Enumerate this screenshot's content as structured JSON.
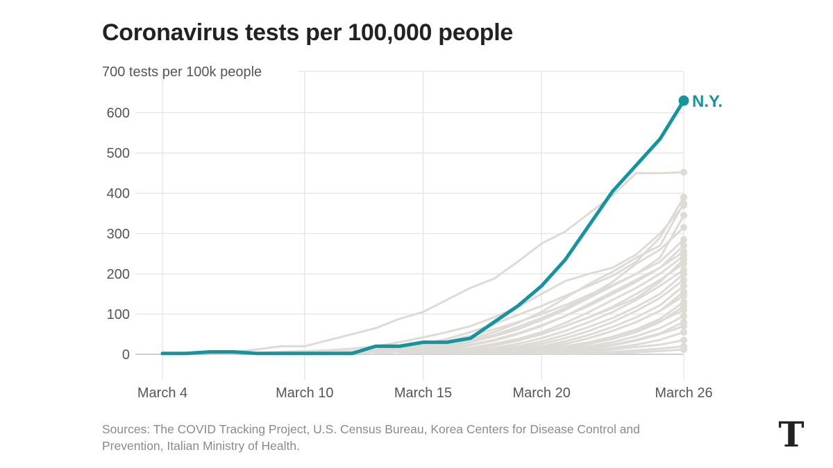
{
  "title": "Coronavirus tests per 100,000 people",
  "source": "Sources: The COVID Tracking Project, U.S. Census Bureau, Korea Centers for Disease Control and Prevention, Italian Ministry of Health.",
  "logo": {
    "icon": "nyt-logo-icon",
    "text": "T"
  },
  "colors": {
    "highlight": "#12959f",
    "background_lines": "#dedad6",
    "grid": "#e2e2e2",
    "axis": "#cfcfcf",
    "text": "#555555"
  },
  "chart_data": {
    "type": "line",
    "title": "Coronavirus tests per 100,000 people",
    "ylabel": "tests per 100k people",
    "top_tick_label": "700 tests per 100k people",
    "ylim": [
      -60,
      700
    ],
    "xlim": [
      0,
      22
    ],
    "y_ticks": [
      0,
      100,
      200,
      300,
      400,
      500,
      600
    ],
    "x_ticks": [
      {
        "value": 0,
        "label": "March 4"
      },
      {
        "value": 6,
        "label": "March 10"
      },
      {
        "value": 11,
        "label": "March 15"
      },
      {
        "value": 16,
        "label": "March 20"
      },
      {
        "value": 22,
        "label": "March 26"
      }
    ],
    "highlight": {
      "name": "N.Y.",
      "x": [
        0,
        1,
        2,
        3,
        4,
        5,
        6,
        7,
        8,
        9,
        10,
        11,
        12,
        13,
        14,
        15,
        16,
        17,
        18,
        19,
        20,
        21,
        22
      ],
      "values": [
        2,
        2,
        6,
        6,
        2,
        2,
        2,
        2,
        2,
        20,
        20,
        30,
        30,
        40,
        80,
        120,
        170,
        235,
        320,
        405,
        470,
        535,
        630
      ]
    },
    "series": [
      {
        "name": "",
        "x": [
          3,
          4,
          5,
          6,
          7,
          8,
          9,
          10,
          11,
          12,
          13,
          14,
          15,
          16,
          17,
          18,
          19,
          20,
          21,
          22
        ],
        "values": [
          6,
          12,
          20,
          20,
          35,
          50,
          65,
          88,
          105,
          135,
          165,
          188,
          230,
          275,
          305,
          350,
          395,
          450,
          450,
          452
        ]
      },
      {
        "name": "",
        "x": [
          4,
          5,
          6,
          7,
          8,
          9,
          10,
          11,
          12,
          13,
          14,
          15,
          16,
          17,
          18,
          19,
          20,
          21,
          22
        ],
        "values": [
          4,
          6,
          8,
          10,
          14,
          20,
          30,
          42,
          55,
          70,
          92,
          118,
          150,
          182,
          200,
          215,
          248,
          300,
          370
        ]
      },
      {
        "name": "",
        "x": [
          6,
          7,
          8,
          9,
          10,
          11,
          12,
          13,
          14,
          15,
          16,
          17,
          18,
          19,
          20,
          21,
          22
        ],
        "values": [
          3,
          5,
          8,
          12,
          18,
          26,
          38,
          55,
          75,
          98,
          120,
          145,
          170,
          195,
          230,
          290,
          390
        ]
      },
      {
        "name": "",
        "x": [
          7,
          8,
          9,
          10,
          11,
          12,
          13,
          14,
          15,
          16,
          17,
          18,
          19,
          20,
          21,
          22
        ],
        "values": [
          3,
          5,
          8,
          12,
          18,
          26,
          38,
          55,
          78,
          105,
          140,
          175,
          205,
          240,
          270,
          375
        ]
      },
      {
        "name": "",
        "x": [
          8,
          9,
          10,
          11,
          12,
          13,
          14,
          15,
          16,
          17,
          18,
          19,
          20,
          21,
          22
        ],
        "values": [
          4,
          8,
          14,
          22,
          32,
          46,
          62,
          80,
          100,
          122,
          148,
          172,
          200,
          240,
          345
        ]
      },
      {
        "name": "",
        "x": [
          8,
          9,
          10,
          11,
          12,
          13,
          14,
          15,
          16,
          17,
          18,
          19,
          20,
          21,
          22
        ],
        "values": [
          3,
          6,
          10,
          16,
          24,
          34,
          48,
          68,
          90,
          115,
          145,
          180,
          225,
          260,
          315
        ]
      },
      {
        "name": "",
        "x": [
          9,
          10,
          11,
          12,
          13,
          14,
          15,
          16,
          17,
          18,
          19,
          20,
          21,
          22
        ],
        "values": [
          4,
          8,
          12,
          20,
          30,
          45,
          62,
          85,
          110,
          140,
          170,
          200,
          230,
          285
        ]
      },
      {
        "name": "",
        "x": [
          9,
          10,
          11,
          12,
          13,
          14,
          15,
          16,
          17,
          18,
          19,
          20,
          21,
          22
        ],
        "values": [
          3,
          6,
          10,
          16,
          24,
          36,
          52,
          72,
          95,
          120,
          150,
          180,
          215,
          270
        ]
      },
      {
        "name": "",
        "x": [
          10,
          11,
          12,
          13,
          14,
          15,
          16,
          17,
          18,
          19,
          20,
          21,
          22
        ],
        "values": [
          4,
          8,
          14,
          22,
          34,
          50,
          70,
          95,
          125,
          155,
          185,
          215,
          255
        ]
      },
      {
        "name": "",
        "x": [
          10,
          11,
          12,
          13,
          14,
          15,
          16,
          17,
          18,
          19,
          20,
          21,
          22
        ],
        "values": [
          3,
          6,
          10,
          16,
          26,
          38,
          55,
          78,
          105,
          135,
          165,
          200,
          245
        ]
      },
      {
        "name": "",
        "x": [
          10,
          11,
          12,
          13,
          14,
          15,
          16,
          17,
          18,
          19,
          20,
          21,
          22
        ],
        "values": [
          2,
          4,
          8,
          14,
          22,
          34,
          50,
          70,
          92,
          115,
          140,
          180,
          235
        ]
      },
      {
        "name": "",
        "x": [
          11,
          12,
          13,
          14,
          15,
          16,
          17,
          18,
          19,
          20,
          21,
          22
        ],
        "values": [
          4,
          8,
          14,
          22,
          34,
          50,
          70,
          92,
          118,
          150,
          185,
          225
        ]
      },
      {
        "name": "",
        "x": [
          11,
          12,
          13,
          14,
          15,
          16,
          17,
          18,
          19,
          20,
          21,
          22
        ],
        "values": [
          3,
          6,
          10,
          16,
          26,
          40,
          58,
          80,
          105,
          135,
          170,
          210
        ]
      },
      {
        "name": "",
        "x": [
          11,
          12,
          13,
          14,
          15,
          16,
          17,
          18,
          19,
          20,
          21,
          22
        ],
        "values": [
          2,
          4,
          8,
          12,
          20,
          32,
          48,
          68,
          90,
          118,
          150,
          200
        ]
      },
      {
        "name": "",
        "x": [
          12,
          13,
          14,
          15,
          16,
          17,
          18,
          19,
          20,
          21,
          22
        ],
        "values": [
          3,
          6,
          10,
          16,
          26,
          40,
          58,
          80,
          108,
          140,
          185
        ]
      },
      {
        "name": "",
        "x": [
          12,
          13,
          14,
          15,
          16,
          17,
          18,
          19,
          20,
          21,
          22
        ],
        "values": [
          2,
          4,
          8,
          12,
          20,
          32,
          48,
          68,
          92,
          122,
          170
        ]
      },
      {
        "name": "",
        "x": [
          12,
          13,
          14,
          15,
          16,
          17,
          18,
          19,
          20,
          21,
          22
        ],
        "values": [
          2,
          3,
          6,
          10,
          16,
          26,
          40,
          58,
          80,
          108,
          155
        ]
      },
      {
        "name": "",
        "x": [
          13,
          14,
          15,
          16,
          17,
          18,
          19,
          20,
          21,
          22
        ],
        "values": [
          3,
          6,
          10,
          16,
          26,
          40,
          58,
          80,
          108,
          145
        ]
      },
      {
        "name": "",
        "x": [
          13,
          14,
          15,
          16,
          17,
          18,
          19,
          20,
          21,
          22
        ],
        "values": [
          2,
          4,
          8,
          12,
          20,
          30,
          44,
          62,
          88,
          130
        ]
      },
      {
        "name": "",
        "x": [
          13,
          14,
          15,
          16,
          17,
          18,
          19,
          20,
          21,
          22
        ],
        "values": [
          2,
          3,
          6,
          10,
          16,
          26,
          38,
          55,
          80,
          120
        ]
      },
      {
        "name": "",
        "x": [
          14,
          15,
          16,
          17,
          18,
          19,
          20,
          21,
          22
        ],
        "values": [
          3,
          6,
          10,
          16,
          26,
          40,
          58,
          82,
          110
        ]
      },
      {
        "name": "",
        "x": [
          14,
          15,
          16,
          17,
          18,
          19,
          20,
          21,
          22
        ],
        "values": [
          2,
          4,
          8,
          12,
          20,
          30,
          45,
          65,
          95
        ]
      },
      {
        "name": "",
        "x": [
          14,
          15,
          16,
          17,
          18,
          19,
          20,
          21,
          22
        ],
        "values": [
          2,
          3,
          6,
          10,
          16,
          24,
          36,
          52,
          80
        ]
      },
      {
        "name": "",
        "x": [
          15,
          16,
          17,
          18,
          19,
          20,
          21,
          22
        ],
        "values": [
          2,
          4,
          8,
          14,
          22,
          34,
          50,
          70
        ]
      },
      {
        "name": "",
        "x": [
          15,
          16,
          17,
          18,
          19,
          20,
          21,
          22
        ],
        "values": [
          2,
          3,
          6,
          10,
          16,
          24,
          36,
          55
        ]
      },
      {
        "name": "",
        "x": [
          16,
          17,
          18,
          19,
          20,
          21,
          22
        ],
        "values": [
          2,
          4,
          8,
          12,
          18,
          24,
          35
        ]
      },
      {
        "name": "",
        "x": [
          16,
          17,
          18,
          19,
          20,
          21,
          22
        ],
        "values": [
          1,
          2,
          4,
          6,
          10,
          14,
          20
        ]
      },
      {
        "name": "",
        "x": [
          17,
          18,
          19,
          20,
          21,
          22
        ],
        "values": [
          1,
          2,
          3,
          5,
          8,
          12
        ]
      }
    ]
  }
}
